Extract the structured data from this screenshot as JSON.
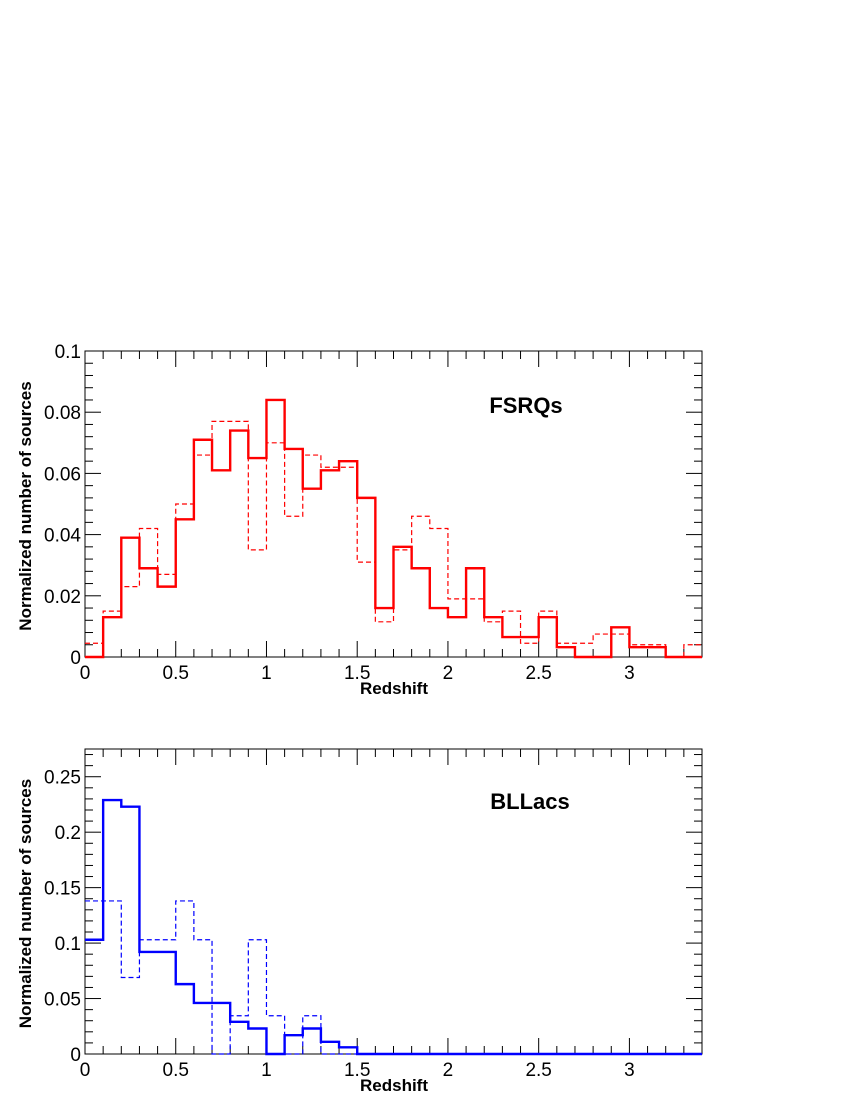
{
  "chart_data": [
    {
      "type": "histogram",
      "title": "FSRQs",
      "xlabel": "Redshift",
      "ylabel": "Normalized number of sources",
      "xlim": [
        0,
        3.4
      ],
      "ylim": [
        0,
        0.1
      ],
      "xticks": [
        0,
        0.5,
        1,
        1.5,
        2,
        2.5,
        3
      ],
      "xtick_labels": [
        "0",
        "0.5",
        "1",
        "1.5",
        "2",
        "2.5",
        "3"
      ],
      "yticks": [
        0,
        0.02,
        0.04,
        0.06,
        0.08,
        0.1
      ],
      "ytick_labels": [
        "0",
        "0.02",
        "0.04",
        "0.06",
        "0.08",
        "0.1"
      ],
      "bin_width": 0.1,
      "series": [
        {
          "style": "solid",
          "color": "#ff0000",
          "values": [
            0.0,
            0.013,
            0.039,
            0.029,
            0.023,
            0.045,
            0.071,
            0.061,
            0.074,
            0.065,
            0.084,
            0.068,
            0.055,
            0.061,
            0.064,
            0.052,
            0.016,
            0.036,
            0.029,
            0.016,
            0.013,
            0.029,
            0.013,
            0.0065,
            0.0065,
            0.013,
            0.0032,
            0.0,
            0.0,
            0.0097,
            0.0032,
            0.0032,
            0.0,
            0.0
          ]
        },
        {
          "style": "dashed",
          "color": "#ff0000",
          "values": [
            0.0045,
            0.015,
            0.023,
            0.042,
            0.027,
            0.05,
            0.066,
            0.077,
            0.077,
            0.035,
            0.07,
            0.046,
            0.066,
            0.062,
            0.062,
            0.031,
            0.0115,
            0.035,
            0.046,
            0.042,
            0.019,
            0.019,
            0.0115,
            0.015,
            0.0045,
            0.015,
            0.0045,
            0.0045,
            0.0075,
            0.0075,
            0.004,
            0.004,
            0.0,
            0.004
          ]
        }
      ]
    },
    {
      "type": "histogram",
      "title": "BLLacs",
      "xlabel": "Redshift",
      "ylabel": "Normalized number of sources",
      "xlim": [
        0,
        3.4
      ],
      "ylim": [
        0,
        0.275
      ],
      "xticks": [
        0,
        0.5,
        1,
        1.5,
        2,
        2.5,
        3
      ],
      "xtick_labels": [
        "0",
        "0.5",
        "1",
        "1.5",
        "2",
        "2.5",
        "3"
      ],
      "yticks": [
        0,
        0.05,
        0.1,
        0.15,
        0.2,
        0.25
      ],
      "ytick_labels": [
        "0",
        "0.05",
        "0.1",
        "0.15",
        "0.2",
        "0.25"
      ],
      "bin_width": 0.1,
      "series": [
        {
          "style": "solid",
          "color": "#0000ff",
          "values": [
            0.103,
            0.229,
            0.223,
            0.092,
            0.092,
            0.063,
            0.046,
            0.046,
            0.029,
            0.023,
            0.0,
            0.017,
            0.023,
            0.011,
            0.006,
            0.0,
            0.0,
            0.0,
            0.0,
            0.0,
            0.0,
            0.0,
            0.0,
            0.0,
            0.0,
            0.0,
            0.0,
            0.0,
            0.0,
            0.0,
            0.0,
            0.0,
            0.0,
            0.0
          ]
        },
        {
          "style": "dashed",
          "color": "#0000ff",
          "values": [
            0.138,
            0.138,
            0.069,
            0.103,
            0.103,
            0.138,
            0.103,
            0.0,
            0.0345,
            0.103,
            0.0345,
            0.0,
            0.0345,
            0.0,
            0.0,
            0.0,
            0.0,
            0.0,
            0.0,
            0.0,
            0.0,
            0.0,
            0.0,
            0.0,
            0.0,
            0.0,
            0.0,
            0.0,
            0.0,
            0.0,
            0.0,
            0.0,
            0.0,
            0.0
          ]
        }
      ]
    }
  ]
}
